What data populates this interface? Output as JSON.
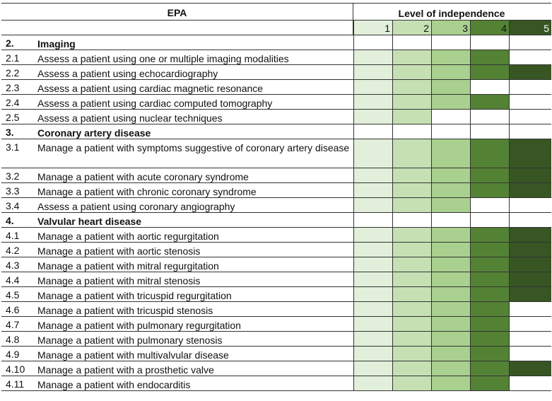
{
  "header": {
    "epa": "EPA",
    "level": "Level of independence",
    "levels": [
      "1",
      "2",
      "3",
      "4",
      "5"
    ]
  },
  "rows": [
    {
      "num": "2.",
      "text": "Imaging",
      "section": true,
      "lvl": 0
    },
    {
      "num": "2.1",
      "text": "Assess a patient using one or multiple imaging modalities",
      "lvl": 4
    },
    {
      "num": "2.2",
      "text": "Assess a patient using echocardiography",
      "lvl": 5
    },
    {
      "num": "2.3",
      "text": "Assess a patient using cardiac magnetic resonance",
      "lvl": 3
    },
    {
      "num": "2.4",
      "text": "Assess a patient using cardiac computed tomography",
      "lvl": 4
    },
    {
      "num": "2.5",
      "text": "Assess a patient using nuclear techniques",
      "lvl": 2
    },
    {
      "num": "3.",
      "text": "Coronary artery disease",
      "section": true,
      "lvl": 0
    },
    {
      "num": "3.1",
      "text": "Manage a patient with symptoms suggestive of coronary artery disease",
      "lvl": 5,
      "tall": true
    },
    {
      "num": "3.2",
      "text": "Manage a patient with acute coronary syndrome",
      "lvl": 5
    },
    {
      "num": "3.3",
      "text": "Manage a patient with chronic coronary syndrome",
      "lvl": 5
    },
    {
      "num": "3.4",
      "text": "Assess a patient using coronary angiography",
      "lvl": 3
    },
    {
      "num": "4.",
      "text": "Valvular heart disease",
      "section": true,
      "lvl": 0
    },
    {
      "num": "4.1",
      "text": "Manage a patient with aortic regurgitation",
      "lvl": 5
    },
    {
      "num": "4.2",
      "text": "Manage a patient with aortic stenosis",
      "lvl": 5
    },
    {
      "num": "4.3",
      "text": "Manage a patient with mitral regurgitation",
      "lvl": 5
    },
    {
      "num": "4.4",
      "text": "Manage a patient with mitral stenosis",
      "lvl": 5
    },
    {
      "num": "4.5",
      "text": "Manage a patient with tricuspid regurgitation",
      "lvl": 5
    },
    {
      "num": "4.6",
      "text": "Manage a patient with tricuspid stenosis",
      "lvl": 4
    },
    {
      "num": "4.7",
      "text": "Manage a patient with pulmonary regurgitation",
      "lvl": 4
    },
    {
      "num": "4.8",
      "text": "Manage a patient with pulmonary stenosis",
      "lvl": 4
    },
    {
      "num": "4.9",
      "text": "Manage a patient with multivalvular disease",
      "lvl": 4
    },
    {
      "num": "4.10",
      "text": "Manage a patient with a prosthetic valve",
      "lvl": 5
    },
    {
      "num": "4.11",
      "text": "Manage a patient with endocarditis",
      "lvl": 4
    }
  ]
}
